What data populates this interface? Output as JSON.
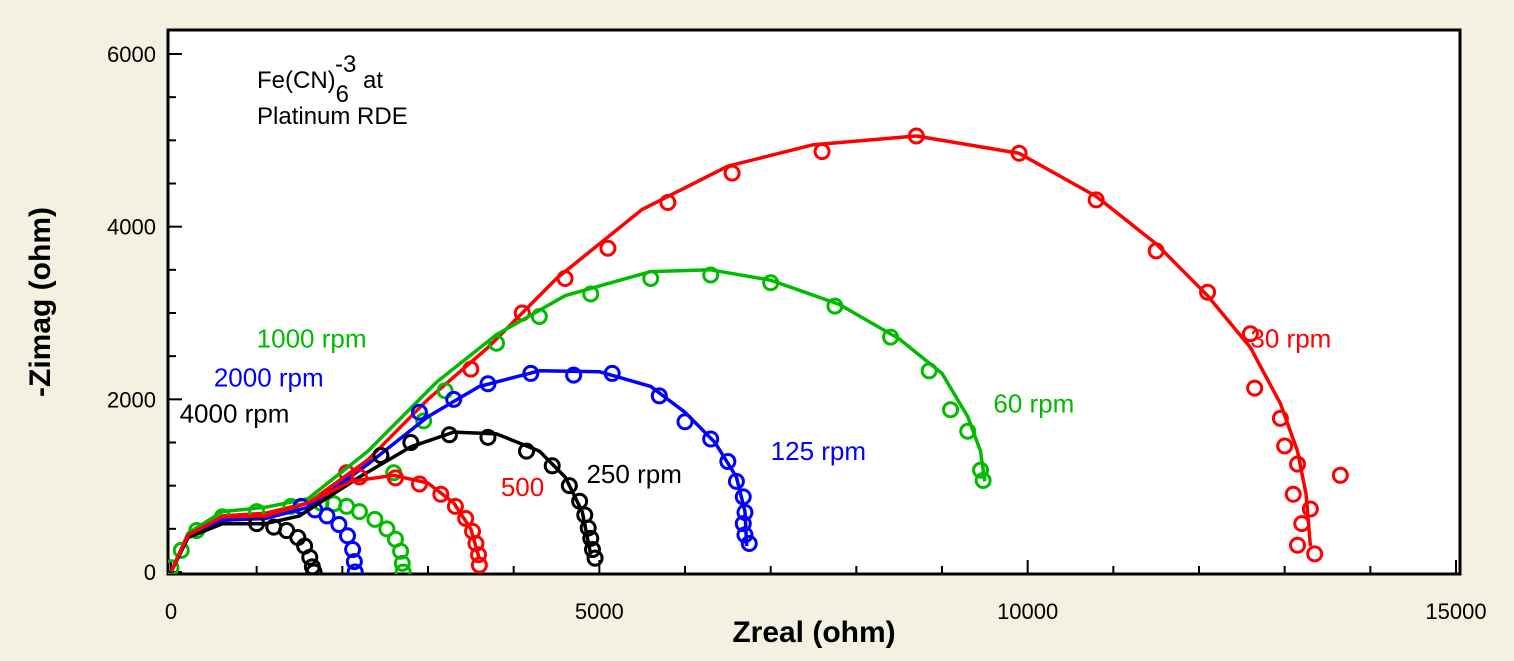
{
  "chart_data": {
    "type": "scatter",
    "title": "",
    "annotation": {
      "line1_prefix": "Fe(CN)",
      "line1_sub": "6",
      "line1_sup": "-3",
      "line1_suffix": " at",
      "line2": "Platinum RDE"
    },
    "xlabel": "Zreal (ohm)",
    "ylabel": "-Zimag (ohm)",
    "xlim": [
      0,
      15000
    ],
    "ylim": [
      0,
      6000
    ],
    "x_ticks": [
      0,
      5000,
      10000,
      15000
    ],
    "x_tick_labels": [
      "0",
      "5000",
      "10000",
      "15000"
    ],
    "y_ticks": [
      0,
      2000,
      4000,
      6000
    ],
    "y_tick_labels": [
      "0",
      "2000",
      "4000",
      "6000"
    ],
    "series": [
      {
        "name": "30 rpm",
        "color": "#ff0000",
        "label_pos": [
          12600,
          2600
        ],
        "fit": [
          [
            0,
            0
          ],
          [
            200,
            400
          ],
          [
            600,
            650
          ],
          [
            1100,
            680
          ],
          [
            1600,
            800
          ],
          [
            2300,
            1300
          ],
          [
            3000,
            2000
          ],
          [
            3700,
            2600
          ],
          [
            4500,
            3400
          ],
          [
            5500,
            4200
          ],
          [
            6500,
            4700
          ],
          [
            7500,
            4950
          ],
          [
            8700,
            5050
          ],
          [
            9900,
            4850
          ],
          [
            10800,
            4350
          ],
          [
            11500,
            3800
          ],
          [
            12100,
            3200
          ],
          [
            12600,
            2600
          ],
          [
            12950,
            1950
          ],
          [
            13150,
            1400
          ],
          [
            13250,
            900
          ],
          [
            13300,
            300
          ]
        ],
        "points": [
          [
            2050,
            1150
          ],
          [
            2450,
            1350
          ],
          [
            3500,
            2350
          ],
          [
            4100,
            3000
          ],
          [
            4600,
            3400
          ],
          [
            5100,
            3750
          ],
          [
            5800,
            4280
          ],
          [
            6550,
            4620
          ],
          [
            7600,
            4870
          ],
          [
            8700,
            5050
          ],
          [
            9900,
            4850
          ],
          [
            10800,
            4310
          ],
          [
            11500,
            3720
          ],
          [
            12100,
            3240
          ],
          [
            12600,
            2760
          ],
          [
            12650,
            2130
          ],
          [
            12950,
            1780
          ],
          [
            13000,
            1460
          ],
          [
            13150,
            1250
          ],
          [
            13300,
            730
          ],
          [
            13200,
            560
          ],
          [
            13150,
            310
          ],
          [
            13350,
            210
          ],
          [
            13650,
            1120
          ],
          [
            13100,
            900
          ]
        ]
      },
      {
        "name": "60 rpm",
        "color": "#00bb00",
        "label_pos": [
          9600,
          1850
        ],
        "fit": [
          [
            0,
            0
          ],
          [
            200,
            450
          ],
          [
            600,
            700
          ],
          [
            1100,
            750
          ],
          [
            1600,
            850
          ],
          [
            2300,
            1400
          ],
          [
            3100,
            2200
          ],
          [
            3800,
            2750
          ],
          [
            4600,
            3200
          ],
          [
            5600,
            3480
          ],
          [
            6300,
            3500
          ],
          [
            7000,
            3380
          ],
          [
            7800,
            3100
          ],
          [
            8500,
            2700
          ],
          [
            9000,
            2300
          ],
          [
            9300,
            1800
          ],
          [
            9450,
            1400
          ],
          [
            9500,
            1050
          ]
        ],
        "points": [
          [
            0,
            50
          ],
          [
            120,
            250
          ],
          [
            300,
            480
          ],
          [
            600,
            640
          ],
          [
            1000,
            700
          ],
          [
            1400,
            760
          ],
          [
            1750,
            800
          ],
          [
            1900,
            790
          ],
          [
            2050,
            760
          ],
          [
            2200,
            700
          ],
          [
            2380,
            610
          ],
          [
            2520,
            500
          ],
          [
            2620,
            380
          ],
          [
            2680,
            240
          ],
          [
            2700,
            100
          ],
          [
            2710,
            0
          ],
          [
            2600,
            1150
          ],
          [
            2950,
            1750
          ],
          [
            3200,
            2100
          ],
          [
            3800,
            2650
          ],
          [
            4300,
            2960
          ],
          [
            4900,
            3220
          ],
          [
            5600,
            3400
          ],
          [
            6300,
            3440
          ],
          [
            7000,
            3350
          ],
          [
            7750,
            3080
          ],
          [
            8400,
            2720
          ],
          [
            8850,
            2330
          ],
          [
            9100,
            1880
          ],
          [
            9300,
            1630
          ],
          [
            9450,
            1180
          ],
          [
            9480,
            1060
          ]
        ]
      },
      {
        "name": "125 rpm",
        "color": "#0000ff",
        "label_pos": [
          7000,
          1300
        ],
        "fit": [
          [
            0,
            0
          ],
          [
            200,
            420
          ],
          [
            600,
            600
          ],
          [
            1100,
            620
          ],
          [
            1600,
            750
          ],
          [
            2300,
            1250
          ],
          [
            3000,
            1800
          ],
          [
            3600,
            2150
          ],
          [
            4300,
            2330
          ],
          [
            5000,
            2320
          ],
          [
            5600,
            2150
          ],
          [
            6000,
            1850
          ],
          [
            6350,
            1500
          ],
          [
            6600,
            1100
          ],
          [
            6700,
            700
          ],
          [
            6720,
            300
          ]
        ],
        "points": [
          [
            1520,
            760
          ],
          [
            1680,
            720
          ],
          [
            1820,
            650
          ],
          [
            1960,
            550
          ],
          [
            2060,
            420
          ],
          [
            2120,
            260
          ],
          [
            2140,
            120
          ],
          [
            2150,
            0
          ],
          [
            2900,
            1850
          ],
          [
            3300,
            2000
          ],
          [
            3700,
            2180
          ],
          [
            4200,
            2300
          ],
          [
            4700,
            2280
          ],
          [
            5150,
            2300
          ],
          [
            5700,
            2040
          ],
          [
            6000,
            1740
          ],
          [
            6300,
            1540
          ],
          [
            6500,
            1280
          ],
          [
            6600,
            1050
          ],
          [
            6680,
            870
          ],
          [
            6700,
            690
          ],
          [
            6680,
            560
          ],
          [
            6700,
            430
          ],
          [
            6750,
            330
          ]
        ]
      },
      {
        "name": "250 rpm",
        "color": "#000000",
        "label_pos": [
          4850,
          1030
        ],
        "fit": [
          [
            0,
            0
          ],
          [
            200,
            400
          ],
          [
            600,
            560
          ],
          [
            1100,
            560
          ],
          [
            1500,
            650
          ],
          [
            2200,
            1100
          ],
          [
            2800,
            1450
          ],
          [
            3300,
            1620
          ],
          [
            3800,
            1600
          ],
          [
            4300,
            1400
          ],
          [
            4600,
            1100
          ],
          [
            4800,
            700
          ],
          [
            4900,
            200
          ]
        ],
        "points": [
          [
            1000,
            560
          ],
          [
            1200,
            520
          ],
          [
            1350,
            480
          ],
          [
            1480,
            400
          ],
          [
            1560,
            300
          ],
          [
            1620,
            170
          ],
          [
            1650,
            60
          ],
          [
            1670,
            0
          ],
          [
            2450,
            1350
          ],
          [
            2800,
            1500
          ],
          [
            3250,
            1590
          ],
          [
            3700,
            1560
          ],
          [
            4150,
            1400
          ],
          [
            4450,
            1230
          ],
          [
            4650,
            1000
          ],
          [
            4770,
            820
          ],
          [
            4830,
            660
          ],
          [
            4870,
            510
          ],
          [
            4900,
            390
          ],
          [
            4920,
            260
          ],
          [
            4950,
            160
          ]
        ]
      },
      {
        "name": "500",
        "color": "#ff0000",
        "label_pos": [
          3850,
          880
        ],
        "fit": [
          [
            0,
            0
          ],
          [
            200,
            430
          ],
          [
            600,
            640
          ],
          [
            1100,
            650
          ],
          [
            1600,
            800
          ],
          [
            2100,
            1050
          ],
          [
            2600,
            1120
          ],
          [
            3000,
            1030
          ],
          [
            3300,
            800
          ],
          [
            3500,
            500
          ],
          [
            3600,
            150
          ]
        ],
        "points": [
          [
            2200,
            1100
          ],
          [
            2620,
            1090
          ],
          [
            2900,
            1020
          ],
          [
            3150,
            900
          ],
          [
            3320,
            760
          ],
          [
            3440,
            620
          ],
          [
            3520,
            470
          ],
          [
            3560,
            330
          ],
          [
            3590,
            200
          ],
          [
            3600,
            80
          ]
        ]
      }
    ],
    "extra_labels": [
      {
        "text": "1000 rpm",
        "color": "#00bb00",
        "pos": [
          1000,
          2600
        ]
      },
      {
        "text": "2000 rpm",
        "color": "#0000ff",
        "pos": [
          500,
          2150
        ]
      },
      {
        "text": "4000 rpm",
        "color": "#000000",
        "pos": [
          100,
          1730
        ]
      }
    ],
    "extra_series": [
      {
        "name": "1000 rpm",
        "color": "#00bb00"
      },
      {
        "name": "2000 rpm",
        "color": "#0000ff"
      },
      {
        "name": "4000 rpm",
        "color": "#000000"
      }
    ]
  }
}
